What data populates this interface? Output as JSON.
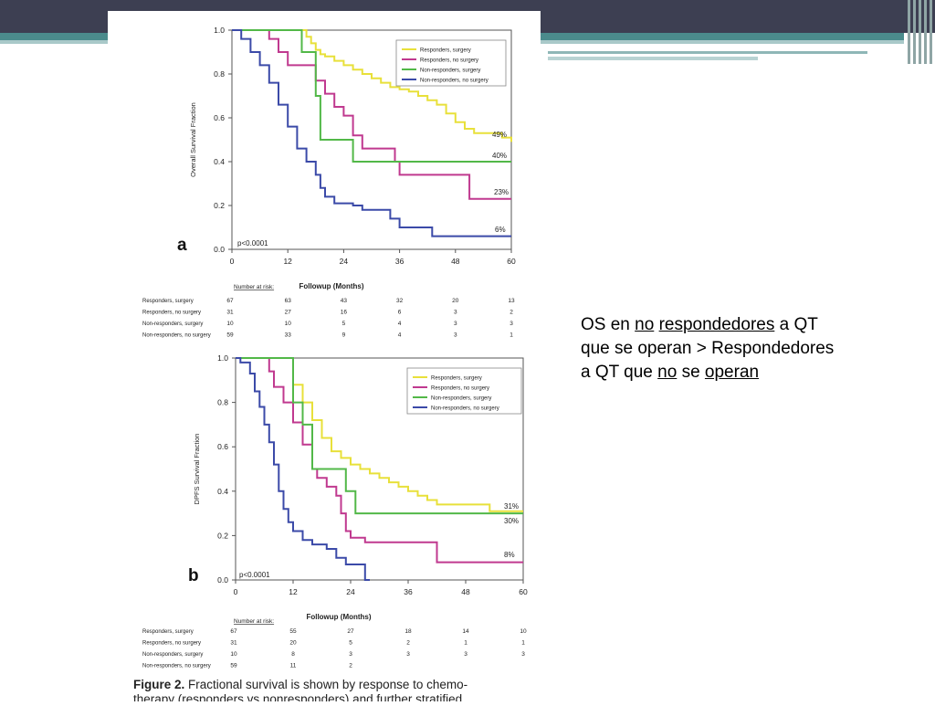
{
  "slide_text": {
    "w1": "OS en ",
    "w2": "no",
    "w3": " ",
    "w4": "respondedores",
    "w5": " a QT",
    "line2": "que se operan > Respondedores",
    "l3a": "a QT que ",
    "l3b": "no",
    "l3c": " se ",
    "l3d": "operan"
  },
  "colors": {
    "responders_surgery": "#e8e03a",
    "responders_no_surgery": "#c0398f",
    "nonresponders_surgery": "#52b848",
    "nonresponders_no_surgery": "#3b4aa8"
  },
  "chart_data": [
    {
      "type": "line",
      "panel_label": "a",
      "ylabel": "Overall Survival Fraction",
      "xlabel": "Followup (Months)",
      "xlim": [
        0,
        60
      ],
      "ylim": [
        0,
        1
      ],
      "xticks": [
        "0",
        "12",
        "24",
        "36",
        "48",
        "60"
      ],
      "yticks": [
        "0.0",
        "0.2",
        "0.4",
        "0.6",
        "0.8",
        "1.0"
      ],
      "pvalue": "p<0.0001",
      "legend": [
        "Responders, surgery",
        "Responders, no surgery",
        "Non-responders, surgery",
        "Non-responders, no surgery"
      ],
      "series": [
        {
          "name": "Responders, surgery",
          "end_label": "49%",
          "points": [
            [
              0,
              1
            ],
            [
              15,
              1
            ],
            [
              16,
              0.97
            ],
            [
              17,
              0.94
            ],
            [
              18,
              0.91
            ],
            [
              19,
              0.89
            ],
            [
              20,
              0.88
            ],
            [
              22,
              0.86
            ],
            [
              24,
              0.84
            ],
            [
              26,
              0.82
            ],
            [
              28,
              0.8
            ],
            [
              30,
              0.78
            ],
            [
              32,
              0.76
            ],
            [
              34,
              0.74
            ],
            [
              36,
              0.73
            ],
            [
              38,
              0.72
            ],
            [
              40,
              0.7
            ],
            [
              42,
              0.68
            ],
            [
              44,
              0.66
            ],
            [
              46,
              0.62
            ],
            [
              48,
              0.58
            ],
            [
              50,
              0.55
            ],
            [
              52,
              0.53
            ],
            [
              56,
              0.53
            ],
            [
              58,
              0.51
            ],
            [
              60,
              0.49
            ]
          ]
        },
        {
          "name": "Responders, no surgery",
          "end_label": "23%",
          "points": [
            [
              0,
              1
            ],
            [
              7,
              1
            ],
            [
              8,
              0.96
            ],
            [
              10,
              0.9
            ],
            [
              12,
              0.84
            ],
            [
              17,
              0.84
            ],
            [
              18,
              0.77
            ],
            [
              20,
              0.71
            ],
            [
              22,
              0.65
            ],
            [
              24,
              0.61
            ],
            [
              26,
              0.52
            ],
            [
              28,
              0.46
            ],
            [
              34,
              0.46
            ],
            [
              35,
              0.4
            ],
            [
              36,
              0.34
            ],
            [
              50,
              0.34
            ],
            [
              51,
              0.23
            ],
            [
              60,
              0.23
            ]
          ]
        },
        {
          "name": "Non-responders, surgery",
          "end_label": "40%",
          "points": [
            [
              0,
              1
            ],
            [
              14,
              1
            ],
            [
              15,
              0.9
            ],
            [
              17,
              0.9
            ],
            [
              18,
              0.7
            ],
            [
              19,
              0.5
            ],
            [
              25,
              0.5
            ],
            [
              26,
              0.4
            ],
            [
              60,
              0.4
            ]
          ]
        },
        {
          "name": "Non-responders, no surgery",
          "end_label": "6%",
          "points": [
            [
              0,
              1
            ],
            [
              2,
              0.96
            ],
            [
              4,
              0.9
            ],
            [
              6,
              0.84
            ],
            [
              8,
              0.76
            ],
            [
              10,
              0.66
            ],
            [
              12,
              0.56
            ],
            [
              14,
              0.46
            ],
            [
              16,
              0.4
            ],
            [
              18,
              0.34
            ],
            [
              19,
              0.28
            ],
            [
              20,
              0.24
            ],
            [
              22,
              0.21
            ],
            [
              26,
              0.2
            ],
            [
              28,
              0.18
            ],
            [
              33,
              0.18
            ],
            [
              34,
              0.14
            ],
            [
              36,
              0.1
            ],
            [
              42,
              0.1
            ],
            [
              43,
              0.06
            ],
            [
              60,
              0.06
            ]
          ]
        }
      ],
      "at_risk": {
        "header": "Number at risk:",
        "rows": [
          {
            "label": "Responders, surgery",
            "values": [
              "67",
              "63",
              "43",
              "32",
              "20",
              "13"
            ]
          },
          {
            "label": "Responders, no surgery",
            "values": [
              "31",
              "27",
              "16",
              "6",
              "3",
              "2"
            ]
          },
          {
            "label": "Non-responders, surgery",
            "values": [
              "10",
              "10",
              "5",
              "4",
              "3",
              "3"
            ]
          },
          {
            "label": "Non-responders, no surgery",
            "values": [
              "59",
              "33",
              "9",
              "4",
              "3",
              "1"
            ]
          }
        ]
      }
    },
    {
      "type": "line",
      "panel_label": "b",
      "ylabel": "DPFS Survival Fraction",
      "xlabel": "Followup (Months)",
      "xlim": [
        0,
        60
      ],
      "ylim": [
        0,
        1
      ],
      "xticks": [
        "0",
        "12",
        "24",
        "36",
        "48",
        "60"
      ],
      "yticks": [
        "0.0",
        "0.2",
        "0.4",
        "0.6",
        "0.8",
        "1.0"
      ],
      "pvalue": "p<0.0001",
      "legend": [
        "Responders, surgery",
        "Responders, no surgery",
        "Non-responders, surgery",
        "Non-responders, no surgery"
      ],
      "series": [
        {
          "name": "Responders, surgery",
          "end_label": "31%",
          "points": [
            [
              0,
              1
            ],
            [
              10,
              1
            ],
            [
              12,
              0.88
            ],
            [
              14,
              0.8
            ],
            [
              16,
              0.72
            ],
            [
              18,
              0.64
            ],
            [
              20,
              0.58
            ],
            [
              22,
              0.55
            ],
            [
              24,
              0.52
            ],
            [
              26,
              0.5
            ],
            [
              28,
              0.48
            ],
            [
              30,
              0.46
            ],
            [
              32,
              0.44
            ],
            [
              34,
              0.42
            ],
            [
              36,
              0.4
            ],
            [
              38,
              0.38
            ],
            [
              40,
              0.36
            ],
            [
              42,
              0.34
            ],
            [
              52,
              0.34
            ],
            [
              53,
              0.31
            ],
            [
              60,
              0.31
            ]
          ]
        },
        {
          "name": "Responders, no surgery",
          "end_label": "8%",
          "points": [
            [
              0,
              1
            ],
            [
              6,
              1
            ],
            [
              7,
              0.94
            ],
            [
              8,
              0.87
            ],
            [
              10,
              0.8
            ],
            [
              12,
              0.71
            ],
            [
              14,
              0.61
            ],
            [
              16,
              0.5
            ],
            [
              17,
              0.46
            ],
            [
              19,
              0.42
            ],
            [
              21,
              0.38
            ],
            [
              22,
              0.3
            ],
            [
              23,
              0.22
            ],
            [
              24,
              0.19
            ],
            [
              27,
              0.17
            ],
            [
              41,
              0.17
            ],
            [
              42,
              0.08
            ],
            [
              60,
              0.08
            ]
          ]
        },
        {
          "name": "Non-responders, surgery",
          "end_label": "30%",
          "points": [
            [
              0,
              1
            ],
            [
              11,
              1
            ],
            [
              12,
              0.8
            ],
            [
              14,
              0.7
            ],
            [
              16,
              0.5
            ],
            [
              23,
              0.4
            ],
            [
              24,
              0.4
            ],
            [
              25,
              0.3
            ],
            [
              60,
              0.3
            ]
          ]
        },
        {
          "name": "Non-responders, no surgery",
          "end_label": "",
          "points": [
            [
              0,
              1
            ],
            [
              1,
              0.98
            ],
            [
              3,
              0.93
            ],
            [
              4,
              0.85
            ],
            [
              5,
              0.78
            ],
            [
              6,
              0.7
            ],
            [
              7,
              0.62
            ],
            [
              8,
              0.52
            ],
            [
              9,
              0.4
            ],
            [
              10,
              0.32
            ],
            [
              11,
              0.26
            ],
            [
              12,
              0.22
            ],
            [
              14,
              0.18
            ],
            [
              16,
              0.16
            ],
            [
              19,
              0.14
            ],
            [
              21,
              0.1
            ],
            [
              23,
              0.07
            ],
            [
              26,
              0.07
            ],
            [
              27,
              0
            ],
            [
              28,
              0
            ]
          ]
        }
      ],
      "at_risk": {
        "header": "Number at risk:",
        "rows": [
          {
            "label": "Responders, surgery",
            "values": [
              "67",
              "55",
              "27",
              "18",
              "14",
              "10"
            ]
          },
          {
            "label": "Responders, no surgery",
            "values": [
              "31",
              "20",
              "5",
              "2",
              "1",
              "1"
            ]
          },
          {
            "label": "Non-responders, surgery",
            "values": [
              "10",
              "8",
              "3",
              "3",
              "3",
              "3"
            ]
          },
          {
            "label": "Non-responders, no surgery",
            "values": [
              "59",
              "11",
              "2",
              "",
              "",
              ""
            ]
          }
        ]
      }
    }
  ],
  "caption": {
    "bold": "Figure 2.",
    "line1": " Fractional survival is shown by response to chemo-",
    "line2": "therapy (responders vs nonresponders) and further stratified"
  }
}
